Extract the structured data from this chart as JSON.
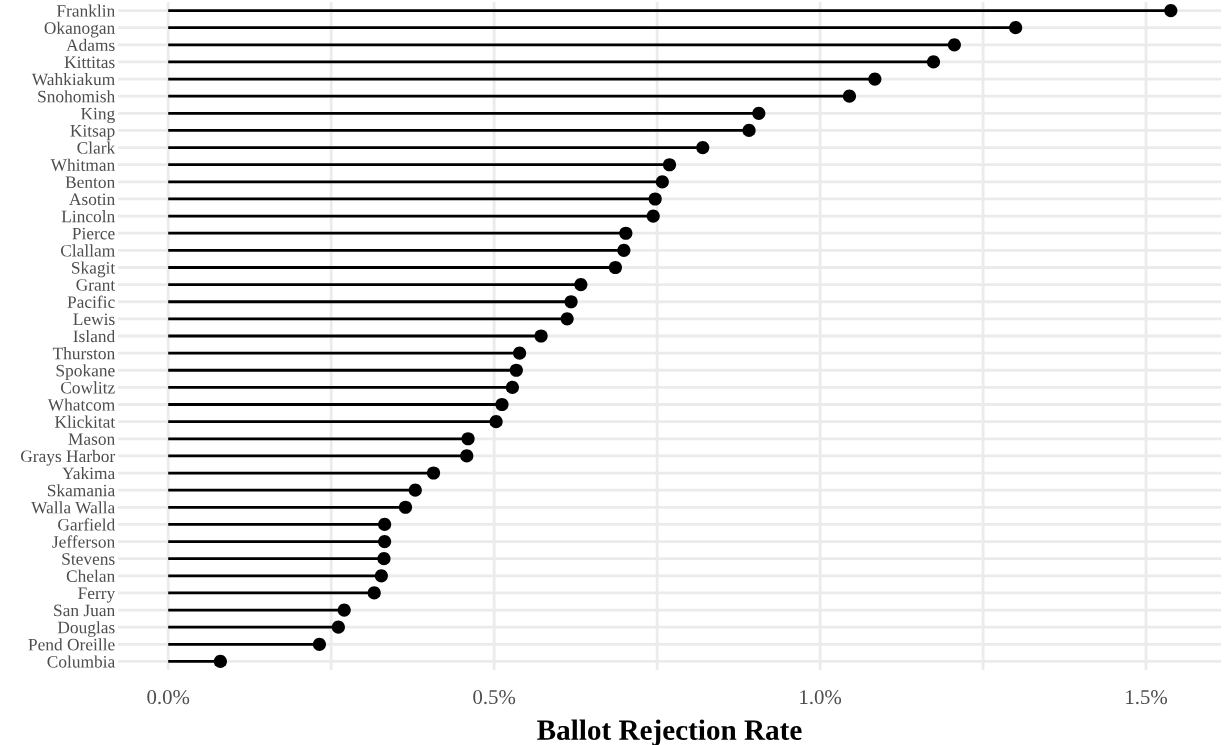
{
  "chart_data": {
    "type": "lollipop",
    "orientation": "horizontal",
    "xlabel": "Ballot Rejection Rate",
    "categories": [
      "Franklin",
      "Okanogan",
      "Adams",
      "Kittitas",
      "Wahkiakum",
      "Snohomish",
      "King",
      "Kitsap",
      "Clark",
      "Whitman",
      "Benton",
      "Asotin",
      "Lincoln",
      "Pierce",
      "Clallam",
      "Skagit",
      "Grant",
      "Pacific",
      "Lewis",
      "Island",
      "Thurston",
      "Spokane",
      "Cowlitz",
      "Whatcom",
      "Klickitat",
      "Mason",
      "Grays Harbor",
      "Yakima",
      "Skamania",
      "Walla Walla",
      "Garfield",
      "Jefferson",
      "Stevens",
      "Chelan",
      "Ferry",
      "San Juan",
      "Douglas",
      "Pend Oreille",
      "Columbia"
    ],
    "values": [
      1.538,
      1.3,
      1.206,
      1.174,
      1.084,
      1.045,
      0.906,
      0.891,
      0.82,
      0.769,
      0.758,
      0.747,
      0.744,
      0.702,
      0.699,
      0.686,
      0.633,
      0.618,
      0.612,
      0.572,
      0.539,
      0.534,
      0.528,
      0.512,
      0.503,
      0.46,
      0.458,
      0.407,
      0.379,
      0.364,
      0.332,
      0.332,
      0.331,
      0.327,
      0.316,
      0.27,
      0.261,
      0.232,
      0.08
    ],
    "color": "#000000",
    "marker": "circle",
    "grid": true,
    "legend": false,
    "xlim": [
      -0.077,
      1.615
    ],
    "xticks": [
      {
        "value": 0,
        "label": "0.0%"
      },
      {
        "value": 0.25,
        "label": null
      },
      {
        "value": 0.5,
        "label": "0.5%"
      },
      {
        "value": 0.75,
        "label": null
      },
      {
        "value": 1.0,
        "label": "1.0%"
      },
      {
        "value": 1.25,
        "label": null
      },
      {
        "value": 1.5,
        "label": "1.5%"
      }
    ]
  }
}
